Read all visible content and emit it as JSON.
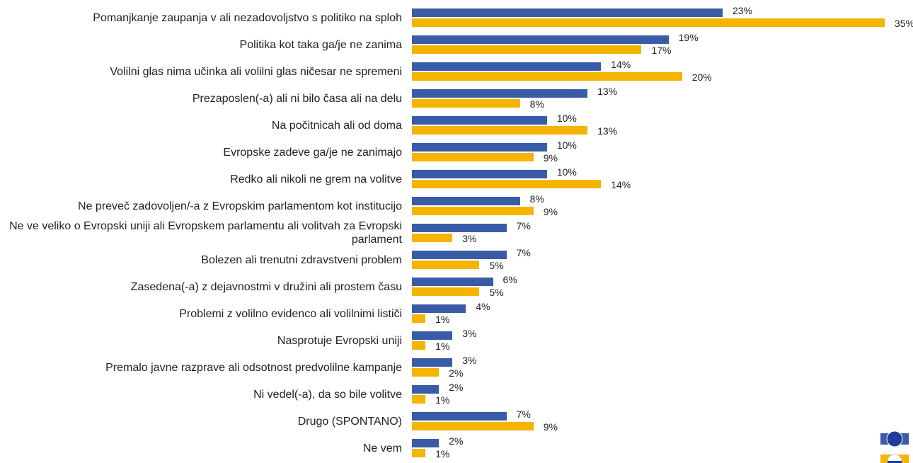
{
  "chart_data": {
    "type": "bar",
    "orientation": "horizontal",
    "categories": [
      "Pomanjkanje zaupanja v ali nezadovoljstvo s politiko na sploh",
      "Politika kot taka ga/je ne zanima",
      "Volilni glas nima učinka ali volilni glas ničesar ne spremeni",
      "Prezaposlen(-a) ali ni bilo časa ali na delu",
      "Na počitnicah ali od doma",
      "Evropske zadeve ga/je ne zanimajo",
      "Redko ali nikoli ne grem na volitve",
      "Ne preveč zadovoljen/-a z Evropskim parlamentom kot institucijo",
      "Ne ve veliko o Evropski uniji ali Evropskem parlamentu ali volitvah za Evropski parlament",
      "Bolezen ali trenutni zdravstveni problem",
      "Zasedena(-a) z dejavnostmi v družini ali prostem času",
      "Problemi z volilno evidenco ali volilnimi lističi",
      "Nasprotuje Evropski uniji",
      "Premalo javne razprave ali odsotnost predvolilne kampanje",
      "Ni vedel(-a), da so bile volitve",
      "Drugo (SPONTANO)",
      "Ne vem"
    ],
    "series": [
      {
        "color": "#3a5ca8",
        "values": [
          23,
          19,
          14,
          13,
          10,
          10,
          10,
          8,
          7,
          7,
          6,
          4,
          3,
          3,
          2,
          7,
          2
        ],
        "value_labels": [
          "23%",
          "19%",
          "14%",
          "13%",
          "10%",
          "10%",
          "10%",
          "8%",
          "7%",
          "7%",
          "6%",
          "4%",
          "3%",
          "3%",
          "2%",
          "7%",
          "2%"
        ]
      },
      {
        "color": "#f5b400",
        "values": [
          35,
          17,
          20,
          8,
          13,
          9,
          14,
          9,
          3,
          5,
          5,
          1,
          1,
          2,
          1,
          9,
          1
        ],
        "value_labels": [
          "35%",
          "17%",
          "20%",
          "8%",
          "13%",
          "9%",
          "14%",
          "9%",
          "3%",
          "5%",
          "5%",
          "1%",
          "1%",
          "2%",
          "1%",
          "9%",
          "1%"
        ]
      }
    ]
  }
}
